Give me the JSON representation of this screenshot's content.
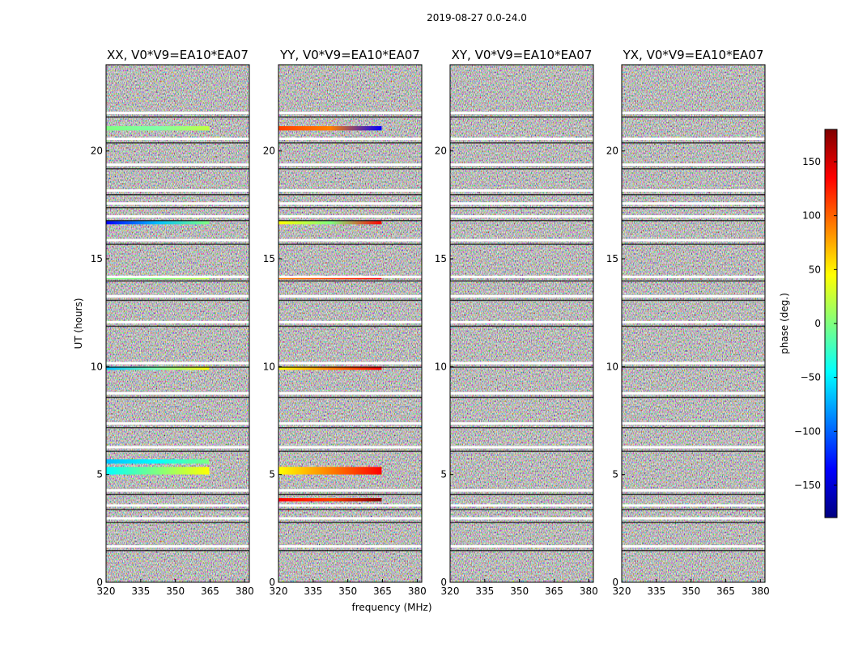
{
  "chart_data": {
    "type": "heatmap",
    "suptitle": "2019-08-27 0.0-24.0",
    "xlabel": "frequency (MHz)",
    "ylabel": "UT (hours)",
    "xlim": [
      320,
      382
    ],
    "ylim": [
      0,
      24
    ],
    "xticks": [
      320,
      335,
      350,
      365,
      380
    ],
    "yticks": [
      0,
      5,
      10,
      15,
      20
    ],
    "colorbar": {
      "label": "phase (deg.)",
      "range": [
        -180,
        180
      ],
      "ticks": [
        150,
        100,
        50,
        0,
        -50,
        -100,
        -150
      ],
      "tick_labels": [
        "150",
        "100",
        "50",
        "0",
        "−50",
        "−100",
        "−150"
      ],
      "colormap": [
        "#00007f",
        "#0000ff",
        "#007fff",
        "#00ffff",
        "#7fff7f",
        "#ffff00",
        "#ff7f00",
        "#ff0000",
        "#7f0000"
      ]
    },
    "panels": [
      {
        "title": "XX, V0*V9=EA10*EA07",
        "phase_structure": "coherent phase bands near UT 5, 7, 10, 14, 16.5, 21 with greenish-cyan phase"
      },
      {
        "title": "YY, V0*V9=EA10*EA07",
        "phase_structure": "coherent phase bands near UT 3.7, 5, 7, 10, 14, 16.5, 21 with yellow-red phase"
      },
      {
        "title": "XY, V0*V9=EA10*EA07",
        "phase_structure": "mostly noise-like phase with flagged gaps"
      },
      {
        "title": "YX, V0*V9=EA10*EA07",
        "phase_structure": "mostly noise-like phase with flagged gaps"
      }
    ],
    "flagged_gap_times_ut": [
      1.6,
      2.9,
      3.5,
      4.2,
      6.2,
      7.3,
      8.7,
      10.1,
      12.0,
      13.2,
      14.1,
      15.8,
      16.9,
      17.5,
      18.1,
      19.3,
      20.5,
      21.7
    ]
  }
}
